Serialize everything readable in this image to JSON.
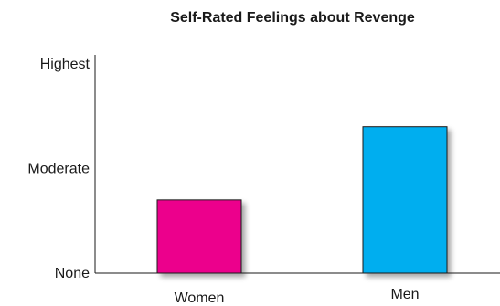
{
  "chart_data": {
    "type": "bar",
    "title": "Self-Rated Feelings about Revenge",
    "xlabel": "",
    "ylabel": "",
    "categories": [
      "Women",
      "Men"
    ],
    "values": [
      0.35,
      0.7
    ],
    "ylim": [
      0,
      1
    ],
    "y_ticks": [
      {
        "value": 0,
        "label": "None"
      },
      {
        "value": 0.5,
        "label": "Moderate"
      },
      {
        "value": 1,
        "label": "Highest"
      }
    ],
    "bar_colors": [
      "#ec008c",
      "#00aeef"
    ],
    "grid": false,
    "legend": "none"
  }
}
